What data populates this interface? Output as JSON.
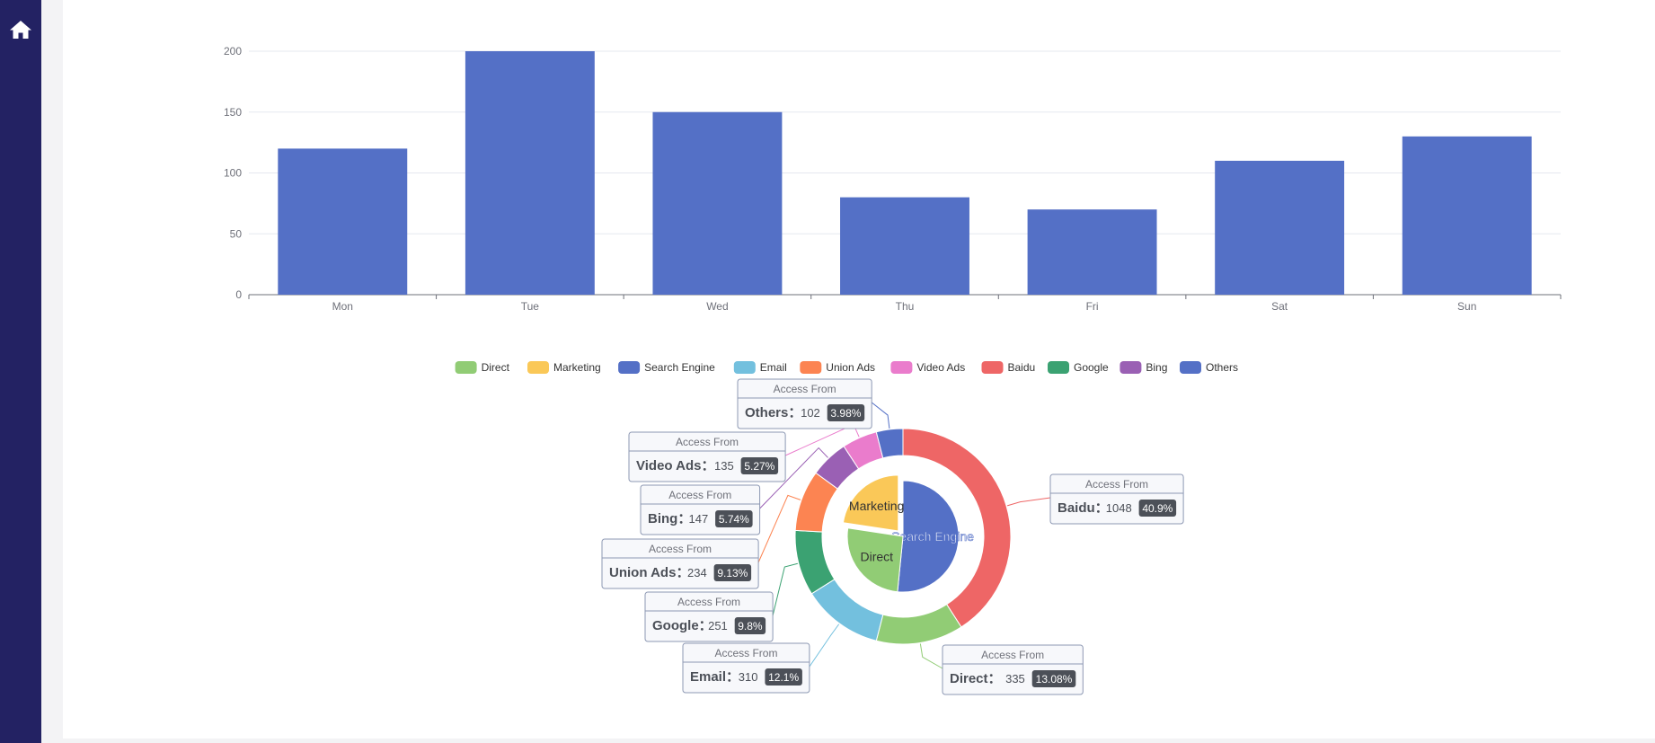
{
  "sidebar": {
    "icon": "home-icon"
  },
  "colors": {
    "bar": "#5470c6",
    "grid": "#e6e8ef",
    "axis": "#6e7079",
    "label": "#6e7079"
  },
  "chart_data": [
    {
      "type": "bar",
      "categories": [
        "Mon",
        "Tue",
        "Wed",
        "Thu",
        "Fri",
        "Sat",
        "Sun"
      ],
      "values": [
        120,
        200,
        150,
        80,
        70,
        110,
        130
      ],
      "ylim": [
        0,
        200
      ],
      "yticks": [
        0,
        50,
        100,
        150,
        200
      ],
      "grid": true
    },
    {
      "type": "pie",
      "legend_placement": "top",
      "legend": [
        {
          "name": "Direct",
          "color": "#91cc75"
        },
        {
          "name": "Marketing",
          "color": "#fac858"
        },
        {
          "name": "Search Engine",
          "color": "#5470c6"
        },
        {
          "name": "Email",
          "color": "#73c0de"
        },
        {
          "name": "Union Ads",
          "color": "#fc8452"
        },
        {
          "name": "Video Ads",
          "color": "#ea7ccc"
        },
        {
          "name": "Baidu",
          "color": "#ee6666"
        },
        {
          "name": "Google",
          "color": "#3ba272"
        },
        {
          "name": "Bing",
          "color": "#9a60b4"
        },
        {
          "name": "Others",
          "color": "#5470c6"
        }
      ],
      "inner": {
        "slices": [
          {
            "name": "Search Engine",
            "value": 1548,
            "color": "#5470c6"
          },
          {
            "name": "Direct",
            "value": 775,
            "color": "#91cc75"
          },
          {
            "name": "Marketing",
            "value": 679,
            "color": "#fac858",
            "selected": true
          }
        ]
      },
      "outer": {
        "tooltip_title": "Access From",
        "slices": [
          {
            "name": "Baidu",
            "value": 1048,
            "percent": "40.9%",
            "color": "#ee6666"
          },
          {
            "name": "Direct",
            "value": 335,
            "percent": "13.08%",
            "color": "#91cc75"
          },
          {
            "name": "Email",
            "value": 310,
            "percent": "12.1%",
            "color": "#73c0de"
          },
          {
            "name": "Google",
            "value": 251,
            "percent": "9.8%",
            "color": "#3ba272"
          },
          {
            "name": "Union Ads",
            "value": 234,
            "percent": "9.13%",
            "color": "#fc8452"
          },
          {
            "name": "Bing",
            "value": 147,
            "percent": "5.74%",
            "color": "#9a60b4"
          },
          {
            "name": "Video Ads",
            "value": 135,
            "percent": "5.27%",
            "color": "#ea7ccc"
          },
          {
            "name": "Others",
            "value": 102,
            "percent": "3.98%",
            "color": "#5470c6"
          }
        ]
      }
    }
  ]
}
